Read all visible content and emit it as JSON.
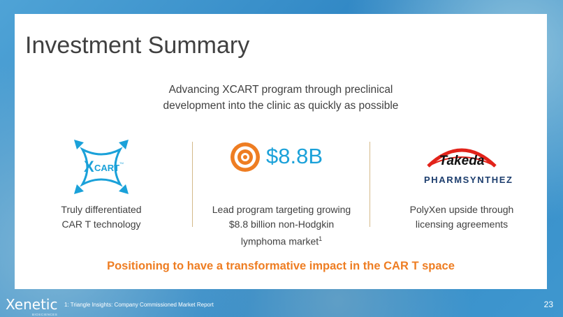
{
  "slide": {
    "title": "Investment Summary",
    "subtitle_line1": "Advancing XCART program through preclinical",
    "subtitle_line2": "development into the clinic as quickly as possible",
    "tagline": "Positioning to have a transformative impact in the CAR T space",
    "page_number": "23"
  },
  "columns": [
    {
      "logo_text": "CART",
      "logo_prefix": "X",
      "logo_tm": "TM",
      "label_line1": "Truly differentiated",
      "label_line2": "CAR T technology"
    },
    {
      "value": "$8.8B",
      "label_line1": "Lead program targeting growing",
      "label_line2": "$8.8 billion non-Hodgkin",
      "label_line3": "lymphoma market",
      "label_sup": "1"
    },
    {
      "logo_takeda": "Takeda",
      "logo_pharm": "PHARMSYNTHEZ",
      "label_line1": "PolyXen upside through",
      "label_line2": "licensing agreements"
    }
  ],
  "footer": {
    "company": "Xenetic",
    "company_sub": "BIOSCIENCES",
    "footnote": "1: Triangle Insights: Company Commissioned  Market Report"
  },
  "colors": {
    "accent_orange": "#ee7d22",
    "accent_blue": "#1aa1d9",
    "takeda_red": "#e2231a",
    "pharm_navy": "#1d3e6e"
  }
}
